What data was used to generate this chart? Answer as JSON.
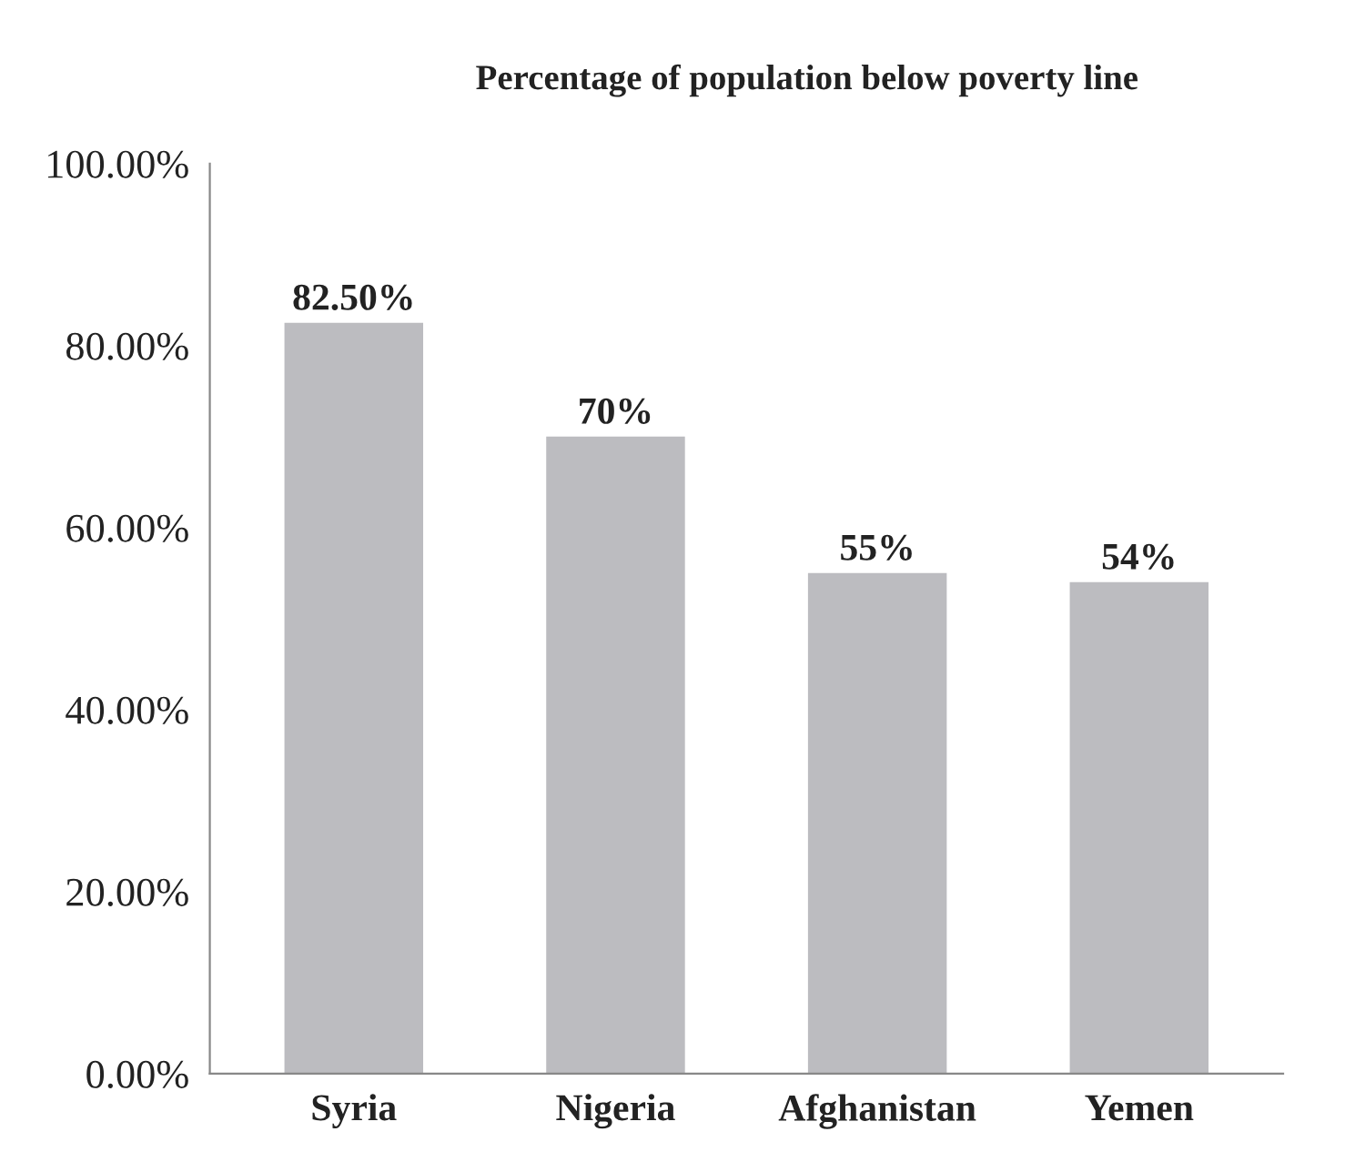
{
  "chart_data": {
    "type": "bar",
    "title": "Percentage of population below poverty line",
    "categories": [
      "Syria",
      "Nigeria",
      "Afghanistan",
      "Yemen"
    ],
    "values": [
      82.5,
      70,
      55,
      54
    ],
    "value_labels": [
      "82.50%",
      "70%",
      "55%",
      "54%"
    ],
    "color": "#bcbcc0",
    "ylim": [
      0,
      100
    ],
    "yticks": [
      {
        "value": 0,
        "label": "0.00%"
      },
      {
        "value": 20,
        "label": "20.00%"
      },
      {
        "value": 40,
        "label": "40.00%"
      },
      {
        "value": 60,
        "label": "60.00%"
      },
      {
        "value": 80,
        "label": "80.00%"
      },
      {
        "value": 100,
        "label": "100.00%"
      }
    ],
    "grid": false,
    "legend": false
  }
}
